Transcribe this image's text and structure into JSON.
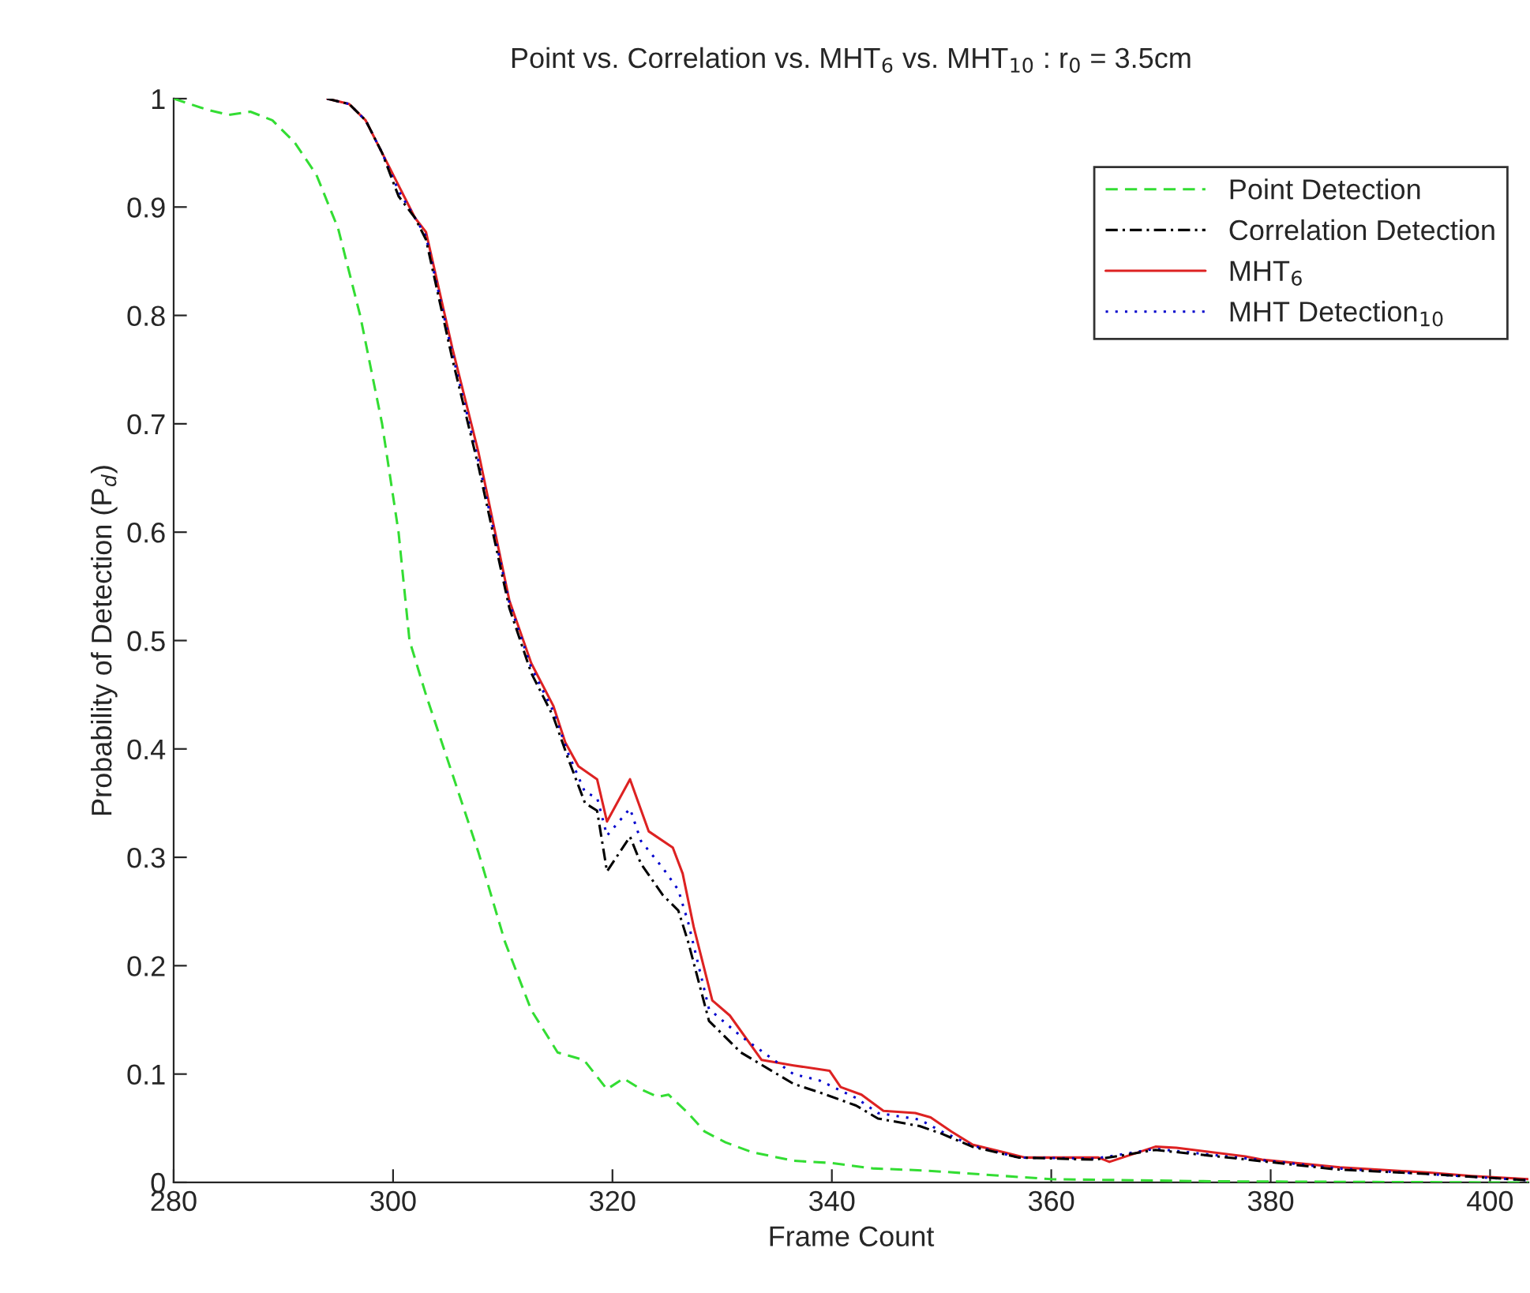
{
  "chart_data": {
    "type": "line",
    "title": "Point vs. Correlation vs. MHT$_{6}$ vs. MHT$_{10}$ : r$_{0}$ = 3.5cm",
    "xlabel": "Frame Count",
    "ylabel": "Probability of Detection (P$_{d}$)",
    "xlim": [
      280,
      403.5
    ],
    "xticks": [
      280,
      300,
      320,
      340,
      360,
      380,
      400
    ],
    "ylim": [
      0,
      1
    ],
    "yticks": [
      0,
      0.1,
      0.2,
      0.3,
      0.4,
      0.5,
      0.6,
      0.7,
      0.8,
      0.9,
      1
    ],
    "grid": false,
    "legend": "top right",
    "marker": "none",
    "series": [
      {
        "name": "Point Detection",
        "color": "#33dd33",
        "line_style": "dashed",
        "x": [
          280,
          283,
          285,
          287,
          289,
          291,
          293,
          295,
          297,
          299,
          300.5,
          301.5,
          303,
          305.4,
          307.8,
          310.2,
          312.6,
          315,
          317.4,
          319.5,
          321,
          322.6,
          324.1,
          325.1,
          326.9,
          328.4,
          330.3,
          332.7,
          336.5,
          339.9,
          343.7,
          348.5,
          355.7,
          360,
          375,
          400,
          403.5
        ],
        "values": [
          1.0,
          0.99,
          0.985,
          0.988,
          0.98,
          0.96,
          0.93,
          0.88,
          0.8,
          0.7,
          0.6,
          0.5,
          0.45,
          0.377,
          0.304,
          0.222,
          0.159,
          0.12,
          0.113,
          0.086,
          0.096,
          0.086,
          0.079,
          0.081,
          0.064,
          0.047,
          0.037,
          0.028,
          0.02,
          0.018,
          0.013,
          0.011,
          0.006,
          0.003,
          0.001,
          0.0,
          0.0
        ]
      },
      {
        "name": "Correlation Detection",
        "color": "#000000",
        "line_style": "dashdot",
        "x": [
          294,
          296,
          297.5,
          299,
          300.5,
          302,
          303,
          305.4,
          307.8,
          310.6,
          312.6,
          314.6,
          316,
          317.5,
          318.6,
          319.5,
          321.6,
          322.6,
          324.6,
          326,
          326.9,
          328.8,
          331.7,
          336.5,
          338.9,
          342.2,
          344.2,
          348,
          350,
          352.8,
          357,
          364,
          369.5,
          377,
          386,
          394,
          403.5
        ],
        "values": [
          1.0,
          0.995,
          0.98,
          0.95,
          0.91,
          0.89,
          0.87,
          0.76,
          0.66,
          0.53,
          0.47,
          0.43,
          0.39,
          0.35,
          0.343,
          0.287,
          0.319,
          0.294,
          0.265,
          0.251,
          0.222,
          0.149,
          0.12,
          0.091,
          0.083,
          0.071,
          0.059,
          0.052,
          0.045,
          0.033,
          0.023,
          0.021,
          0.03,
          0.022,
          0.012,
          0.008,
          0.002
        ]
      },
      {
        "name": "MHT$_{6}$",
        "color": "#dd2222",
        "line_style": "solid",
        "x": [
          294,
          296,
          297.5,
          299,
          300.5,
          302,
          303,
          305.4,
          307.8,
          310.6,
          312.6,
          314.6,
          315.7,
          316.9,
          318.6,
          319.5,
          321.6,
          323.3,
          325.5,
          326.4,
          327.4,
          329.1,
          330.7,
          333.6,
          336.5,
          339.8,
          340.8,
          342.7,
          344.7,
          347.6,
          349,
          350.9,
          352.8,
          357.6,
          364.3,
          365.3,
          369.5,
          371.4,
          377.7,
          379.2,
          386.3,
          394.5,
          398.3,
          403.5
        ],
        "values": [
          1.0,
          0.995,
          0.98,
          0.95,
          0.92,
          0.89,
          0.877,
          0.77,
          0.673,
          0.537,
          0.479,
          0.44,
          0.406,
          0.384,
          0.372,
          0.333,
          0.372,
          0.324,
          0.309,
          0.285,
          0.236,
          0.168,
          0.154,
          0.113,
          0.108,
          0.103,
          0.088,
          0.081,
          0.066,
          0.064,
          0.06,
          0.047,
          0.035,
          0.023,
          0.023,
          0.019,
          0.033,
          0.032,
          0.024,
          0.021,
          0.014,
          0.009,
          0.006,
          0.003
        ]
      },
      {
        "name": "MHT Detection$_{10}$",
        "color": "#0000cc",
        "line_style": "dotted",
        "x": [
          294,
          296,
          297.5,
          299,
          300.5,
          302,
          303,
          305.4,
          307.8,
          310.6,
          312.6,
          314.6,
          316,
          317.5,
          318.6,
          319.5,
          321.6,
          322.6,
          324.6,
          326,
          326.9,
          328.8,
          331.7,
          336.5,
          338.9,
          342.2,
          344.2,
          348,
          350,
          352.8,
          357,
          364,
          369.5,
          377,
          386,
          394,
          403.5
        ],
        "values": [
          1.0,
          0.995,
          0.98,
          0.95,
          0.915,
          0.89,
          0.873,
          0.765,
          0.665,
          0.535,
          0.475,
          0.435,
          0.395,
          0.36,
          0.355,
          0.32,
          0.345,
          0.315,
          0.29,
          0.27,
          0.24,
          0.16,
          0.135,
          0.1,
          0.094,
          0.078,
          0.064,
          0.058,
          0.047,
          0.034,
          0.023,
          0.022,
          0.031,
          0.023,
          0.013,
          0.008,
          0.002
        ]
      }
    ]
  }
}
